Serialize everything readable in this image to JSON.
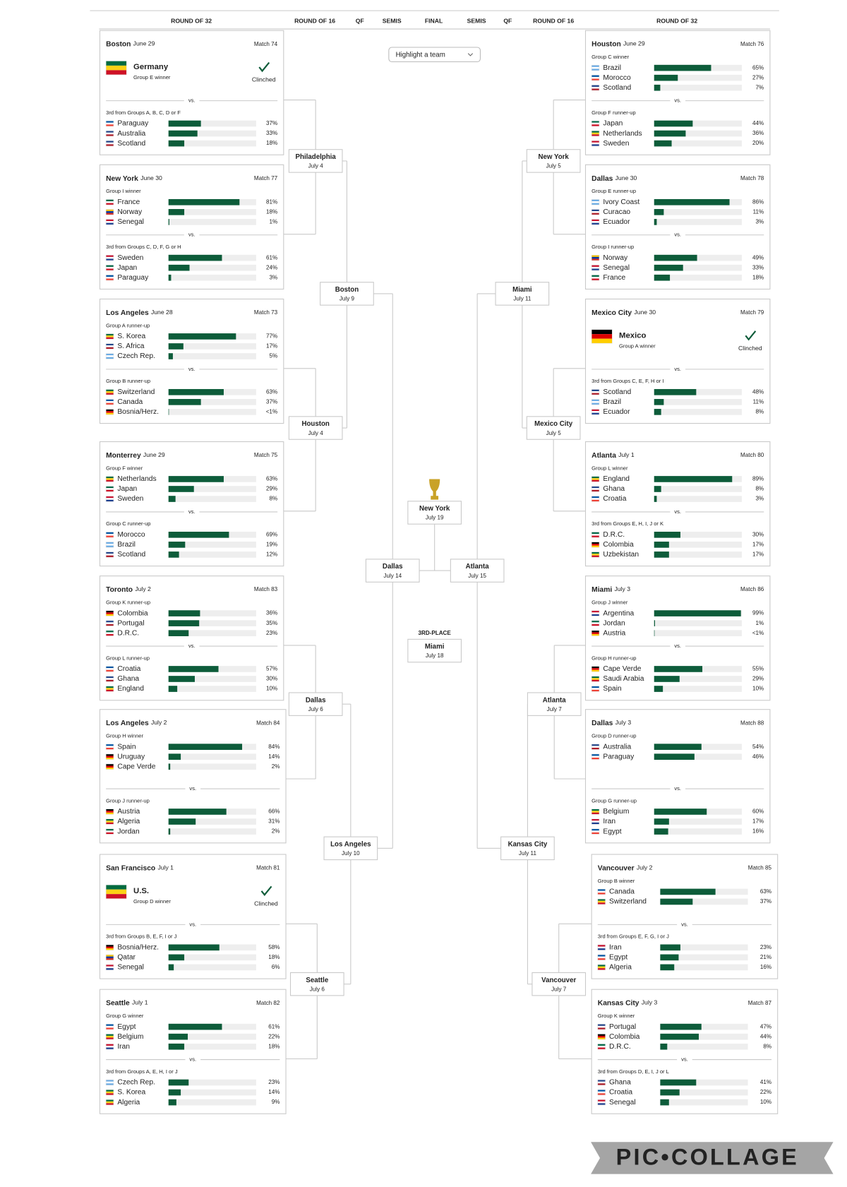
{
  "header": {
    "rounds": [
      "ROUND OF 32",
      "ROUND OF 16",
      "QF",
      "SEMIS",
      "FINAL",
      "SEMIS",
      "QF",
      "ROUND OF 16",
      "ROUND OF 32"
    ],
    "highlight": "Highlight a team"
  },
  "vs": "vs.",
  "left_matches": [
    {
      "city": "Boston",
      "date": "June 29",
      "match": "Match 74",
      "slots": [
        {
          "label": "Group E winner",
          "team": "Germany",
          "status": "Clinched"
        },
        {
          "label": "3rd from Groups A, B, C, D or F",
          "teams": [
            {
              "name": "Paraguay",
              "value": 37,
              "label": "37%"
            },
            {
              "name": "Australia",
              "value": 33,
              "label": "33%"
            },
            {
              "name": "Scotland",
              "value": 18,
              "label": "18%"
            }
          ]
        }
      ]
    },
    {
      "city": "New York",
      "date": "June 30",
      "match": "Match 77",
      "slots": [
        {
          "label": "Group I winner",
          "teams": [
            {
              "name": "France",
              "value": 81,
              "label": "81%"
            },
            {
              "name": "Norway",
              "value": 18,
              "label": "18%"
            },
            {
              "name": "Senegal",
              "value": 1,
              "label": "1%"
            }
          ]
        },
        {
          "label": "3rd from Groups C, D, F, G or H",
          "teams": [
            {
              "name": "Sweden",
              "value": 61,
              "label": "61%"
            },
            {
              "name": "Japan",
              "value": 24,
              "label": "24%"
            },
            {
              "name": "Paraguay",
              "value": 3,
              "label": "3%"
            }
          ]
        }
      ]
    },
    {
      "city": "Los Angeles",
      "date": "June 28",
      "match": "Match 73",
      "slots": [
        {
          "label": "Group A runner-up",
          "teams": [
            {
              "name": "S. Korea",
              "value": 77,
              "label": "77%"
            },
            {
              "name": "S. Africa",
              "value": 17,
              "label": "17%"
            },
            {
              "name": "Czech Rep.",
              "value": 5,
              "label": "5%"
            }
          ]
        },
        {
          "label": "Group B runner-up",
          "teams": [
            {
              "name": "Switzerland",
              "value": 63,
              "label": "63%"
            },
            {
              "name": "Canada",
              "value": 37,
              "label": "37%"
            },
            {
              "name": "Bosnia/Herz.",
              "value": 0.5,
              "label": "<1%"
            }
          ]
        }
      ]
    },
    {
      "city": "Monterrey",
      "date": "June 29",
      "match": "Match 75",
      "slots": [
        {
          "label": "Group F winner",
          "teams": [
            {
              "name": "Netherlands",
              "value": 63,
              "label": "63%"
            },
            {
              "name": "Japan",
              "value": 29,
              "label": "29%"
            },
            {
              "name": "Sweden",
              "value": 8,
              "label": "8%"
            }
          ]
        },
        {
          "label": "Group C runner-up",
          "teams": [
            {
              "name": "Morocco",
              "value": 69,
              "label": "69%"
            },
            {
              "name": "Brazil",
              "value": 19,
              "label": "19%"
            },
            {
              "name": "Scotland",
              "value": 12,
              "label": "12%"
            }
          ]
        }
      ]
    },
    {
      "city": "Toronto",
      "date": "July 2",
      "match": "Match 83",
      "slots": [
        {
          "label": "Group K runner-up",
          "teams": [
            {
              "name": "Colombia",
              "value": 36,
              "label": "36%"
            },
            {
              "name": "Portugal",
              "value": 35,
              "label": "35%"
            },
            {
              "name": "D.R.C.",
              "value": 23,
              "label": "23%"
            }
          ]
        },
        {
          "label": "Group L runner-up",
          "teams": [
            {
              "name": "Croatia",
              "value": 57,
              "label": "57%"
            },
            {
              "name": "Ghana",
              "value": 30,
              "label": "30%"
            },
            {
              "name": "England",
              "value": 10,
              "label": "10%"
            }
          ]
        }
      ]
    },
    {
      "city": "Los Angeles",
      "date": "July 2",
      "match": "Match 84",
      "slots": [
        {
          "label": "Group H winner",
          "teams": [
            {
              "name": "Spain",
              "value": 84,
              "label": "84%"
            },
            {
              "name": "Uruguay",
              "value": 14,
              "label": "14%"
            },
            {
              "name": "Cape Verde",
              "value": 2,
              "label": "2%"
            }
          ]
        },
        {
          "label": "Group J runner-up",
          "teams": [
            {
              "name": "Austria",
              "value": 66,
              "label": "66%"
            },
            {
              "name": "Algeria",
              "value": 31,
              "label": "31%"
            },
            {
              "name": "Jordan",
              "value": 2,
              "label": "2%"
            }
          ]
        }
      ]
    },
    {
      "city": "San Francisco",
      "date": "July 1",
      "match": "Match 81",
      "slots": [
        {
          "label": "Group D winner",
          "team": "U.S.",
          "status": "Clinched"
        },
        {
          "label": "3rd from Groups B, E, F, I or J",
          "teams": [
            {
              "name": "Bosnia/Herz.",
              "value": 58,
              "label": "58%"
            },
            {
              "name": "Qatar",
              "value": 18,
              "label": "18%"
            },
            {
              "name": "Senegal",
              "value": 6,
              "label": "6%"
            }
          ]
        }
      ]
    },
    {
      "city": "Seattle",
      "date": "July 1",
      "match": "Match 82",
      "slots": [
        {
          "label": "Group G winner",
          "teams": [
            {
              "name": "Egypt",
              "value": 61,
              "label": "61%"
            },
            {
              "name": "Belgium",
              "value": 22,
              "label": "22%"
            },
            {
              "name": "Iran",
              "value": 18,
              "label": "18%"
            }
          ]
        },
        {
          "label": "3rd from Groups A, E, H, I or J",
          "teams": [
            {
              "name": "Czech Rep.",
              "value": 23,
              "label": "23%"
            },
            {
              "name": "S. Korea",
              "value": 14,
              "label": "14%"
            },
            {
              "name": "Algeria",
              "value": 9,
              "label": "9%"
            }
          ]
        }
      ]
    }
  ],
  "right_matches": [
    {
      "city": "Houston",
      "date": "June 29",
      "match": "Match 76",
      "slots": [
        {
          "label": "Group C winner",
          "teams": [
            {
              "name": "Brazil",
              "value": 65,
              "label": "65%"
            },
            {
              "name": "Morocco",
              "value": 27,
              "label": "27%"
            },
            {
              "name": "Scotland",
              "value": 7,
              "label": "7%"
            }
          ]
        },
        {
          "label": "Group F runner-up",
          "teams": [
            {
              "name": "Japan",
              "value": 44,
              "label": "44%"
            },
            {
              "name": "Netherlands",
              "value": 36,
              "label": "36%"
            },
            {
              "name": "Sweden",
              "value": 20,
              "label": "20%"
            }
          ]
        }
      ]
    },
    {
      "city": "Dallas",
      "date": "June 30",
      "match": "Match 78",
      "slots": [
        {
          "label": "Group E runner-up",
          "teams": [
            {
              "name": "Ivory Coast",
              "value": 86,
              "label": "86%"
            },
            {
              "name": "Curacao",
              "value": 11,
              "label": "11%"
            },
            {
              "name": "Ecuador",
              "value": 3,
              "label": "3%"
            }
          ]
        },
        {
          "label": "Group I runner-up",
          "teams": [
            {
              "name": "Norway",
              "value": 49,
              "label": "49%"
            },
            {
              "name": "Senegal",
              "value": 33,
              "label": "33%"
            },
            {
              "name": "France",
              "value": 18,
              "label": "18%"
            }
          ]
        }
      ]
    },
    {
      "city": "Mexico City",
      "date": "June 30",
      "match": "Match 79",
      "slots": [
        {
          "label": "Group A winner",
          "team": "Mexico",
          "status": "Clinched"
        },
        {
          "label": "3rd from Groups C, E, F, H or I",
          "teams": [
            {
              "name": "Scotland",
              "value": 48,
              "label": "48%"
            },
            {
              "name": "Brazil",
              "value": 11,
              "label": "11%"
            },
            {
              "name": "Ecuador",
              "value": 8,
              "label": "8%"
            }
          ]
        }
      ]
    },
    {
      "city": "Atlanta",
      "date": "July 1",
      "match": "Match 80",
      "slots": [
        {
          "label": "Group L winner",
          "teams": [
            {
              "name": "England",
              "value": 89,
              "label": "89%"
            },
            {
              "name": "Ghana",
              "value": 8,
              "label": "8%"
            },
            {
              "name": "Croatia",
              "value": 3,
              "label": "3%"
            }
          ]
        },
        {
          "label": "3rd from Groups E, H, I, J or K",
          "teams": [
            {
              "name": "D.R.C.",
              "value": 30,
              "label": "30%"
            },
            {
              "name": "Colombia",
              "value": 17,
              "label": "17%"
            },
            {
              "name": "Uzbekistan",
              "value": 17,
              "label": "17%"
            }
          ]
        }
      ]
    },
    {
      "city": "Miami",
      "date": "July 3",
      "match": "Match 86",
      "slots": [
        {
          "label": "Group J winner",
          "teams": [
            {
              "name": "Argentina",
              "value": 99,
              "label": "99%"
            },
            {
              "name": "Jordan",
              "value": 1,
              "label": "1%"
            },
            {
              "name": "Austria",
              "value": 0.5,
              "label": "<1%"
            }
          ]
        },
        {
          "label": "Group H runner-up",
          "teams": [
            {
              "name": "Cape Verde",
              "value": 55,
              "label": "55%"
            },
            {
              "name": "Saudi Arabia",
              "value": 29,
              "label": "29%"
            },
            {
              "name": "Spain",
              "value": 10,
              "label": "10%"
            }
          ]
        }
      ]
    },
    {
      "city": "Dallas",
      "date": "July 3",
      "match": "Match 88",
      "slots": [
        {
          "label": "Group D runner-up",
          "teams": [
            {
              "name": "Australia",
              "value": 54,
              "label": "54%"
            },
            {
              "name": "Paraguay",
              "value": 46,
              "label": "46%"
            }
          ]
        },
        {
          "label": "Group G runner-up",
          "teams": [
            {
              "name": "Belgium",
              "value": 60,
              "label": "60%"
            },
            {
              "name": "Iran",
              "value": 17,
              "label": "17%"
            },
            {
              "name": "Egypt",
              "value": 16,
              "label": "16%"
            }
          ]
        }
      ]
    },
    {
      "city": "Vancouver",
      "date": "July 2",
      "match": "Match 85",
      "slots": [
        {
          "label": "Group B winner",
          "teams": [
            {
              "name": "Canada",
              "value": 63,
              "label": "63%"
            },
            {
              "name": "Switzerland",
              "value": 37,
              "label": "37%"
            }
          ]
        },
        {
          "label": "3rd from Groups E, F, G, I or J",
          "teams": [
            {
              "name": "Iran",
              "value": 23,
              "label": "23%"
            },
            {
              "name": "Egypt",
              "value": 21,
              "label": "21%"
            },
            {
              "name": "Algeria",
              "value": 16,
              "label": "16%"
            }
          ]
        }
      ]
    },
    {
      "city": "Kansas City",
      "date": "July 3",
      "match": "Match 87",
      "slots": [
        {
          "label": "Group K winner",
          "teams": [
            {
              "name": "Portugal",
              "value": 47,
              "label": "47%"
            },
            {
              "name": "Colombia",
              "value": 44,
              "label": "44%"
            },
            {
              "name": "D.R.C.",
              "value": 8,
              "label": "8%"
            }
          ]
        },
        {
          "label": "3rd from Groups D, E, I, J or L",
          "teams": [
            {
              "name": "Ghana",
              "value": 41,
              "label": "41%"
            },
            {
              "name": "Croatia",
              "value": 22,
              "label": "22%"
            },
            {
              "name": "Senegal",
              "value": 10,
              "label": "10%"
            }
          ]
        }
      ]
    }
  ],
  "bracket": {
    "left_r16": [
      {
        "city": "Philadelphia",
        "date": "July 4"
      },
      {
        "city": "Houston",
        "date": "July 4"
      },
      {
        "city": "Dallas",
        "date": "July 6"
      },
      {
        "city": "Seattle",
        "date": "July 6"
      }
    ],
    "left_qf": [
      {
        "city": "Boston",
        "date": "July 9"
      },
      {
        "city": "Los Angeles",
        "date": "July 10"
      }
    ],
    "left_sf": [
      {
        "city": "Dallas",
        "date": "July 14"
      }
    ],
    "final": [
      {
        "city": "New York",
        "date": "July 19"
      }
    ],
    "right_sf": [
      {
        "city": "Atlanta",
        "date": "July 15"
      }
    ],
    "right_qf": [
      {
        "city": "Miami",
        "date": "July 11"
      },
      {
        "city": "Kansas City",
        "date": "July 11"
      }
    ],
    "right_r16": [
      {
        "city": "New York",
        "date": "July 5"
      },
      {
        "city": "Mexico City",
        "date": "July 5"
      },
      {
        "city": "Atlanta",
        "date": "July 7"
      },
      {
        "city": "Vancouver",
        "date": "July 7"
      }
    ],
    "third_place": [
      {
        "title": "3RD-PLACE",
        "city": "Miami",
        "date": "July 18"
      }
    ]
  },
  "watermark": "PIC•COLLAGE"
}
